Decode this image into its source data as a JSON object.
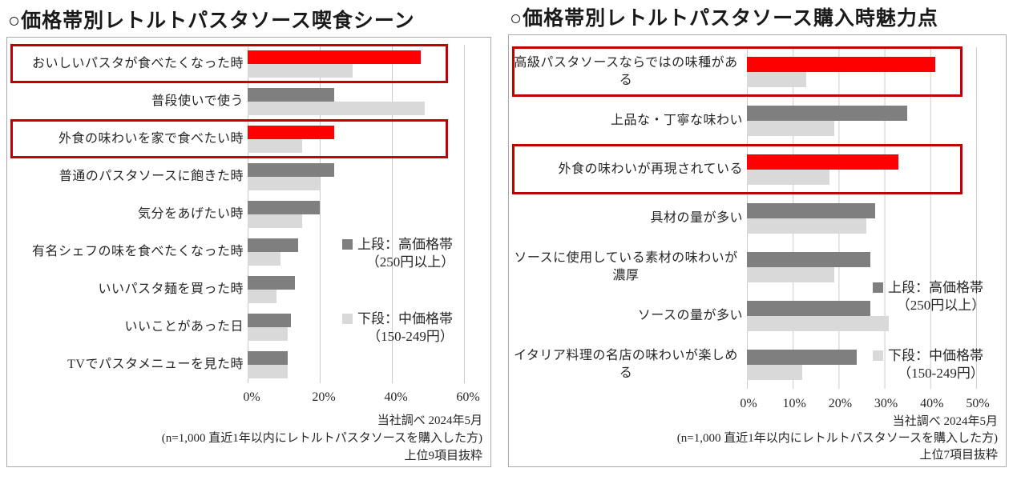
{
  "colors": {
    "high_price_bar": "#7f7f7f",
    "mid_price_bar": "#d9d9d9",
    "highlight_bar": "#ff0000",
    "highlight_frame": "#c00000",
    "gridline": "#cccccc",
    "panel_border": "#a9a9a9",
    "text": "#262626"
  },
  "chart_data": [
    {
      "type": "bar",
      "orientation": "horizontal",
      "title": "○価格帯別レトルトパスタソース喫食シーン",
      "categories": [
        "おいしいパスタが食べたくなった時",
        "普段使いで使う",
        "外食の味わいを家で食べたい時",
        "普通のパスタソースに飽きた時",
        "気分をあげたい時",
        "有名シェフの味を食べたくなった時",
        "いいパスタ麺を買った時",
        "いいことがあった日",
        "TVでパスタメニューを見た時"
      ],
      "series": [
        {
          "name": "上段：高価格帯（250円以上）",
          "values": [
            48,
            24,
            24,
            24,
            20,
            14,
            13,
            12,
            11
          ]
        },
        {
          "name": "下段：中価格帯（150-249円）",
          "values": [
            29,
            49,
            15,
            20,
            15,
            9,
            8,
            11,
            11
          ]
        }
      ],
      "highlighted_rows": [
        0,
        2
      ],
      "x_ticks": [
        "0%",
        "20%",
        "40%",
        "60%"
      ],
      "xlim": [
        0,
        60
      ],
      "grid": true,
      "legend": {
        "position": "right-middle",
        "items": [
          {
            "line1": "上段：高価格帯",
            "line2": "（250円以上）",
            "color": "#7f7f7f"
          },
          {
            "line1": "下段：中価格帯",
            "line2": "（150-249円）",
            "color": "#d9d9d9"
          }
        ]
      },
      "footer_lines": [
        "当社調べ 2024年5月",
        "(n=1,000 直近1年以内にレトルトパスタソースを購入した方)",
        "上位9項目抜粋"
      ]
    },
    {
      "type": "bar",
      "orientation": "horizontal",
      "title": "○価格帯別レトルトパスタソース購入時魅力点",
      "categories": [
        "高級パスタソースならではの味種がある",
        "上品な・丁寧な味わい",
        "外食の味わいが再現されている",
        "具材の量が多い",
        "ソースに使用している素材の味わいが濃厚",
        "ソースの量が多い",
        "イタリア料理の名店の味わいが楽しめる"
      ],
      "series": [
        {
          "name": "上段：高価格帯（250円以上）",
          "values": [
            41,
            35,
            33,
            28,
            27,
            27,
            24
          ]
        },
        {
          "name": "下段：中価格帯（150-249円）",
          "values": [
            13,
            19,
            18,
            26,
            19,
            31,
            12
          ]
        }
      ],
      "highlighted_rows": [
        0,
        2
      ],
      "x_ticks": [
        "0%",
        "10%",
        "20%",
        "30%",
        "40%",
        "50%"
      ],
      "xlim": [
        0,
        50
      ],
      "grid": true,
      "legend": {
        "position": "right-middle",
        "items": [
          {
            "line1": "上段：高価格帯",
            "line2": "（250円以上）",
            "color": "#7f7f7f"
          },
          {
            "line1": "下段：中価格帯",
            "line2": "（150-249円）",
            "color": "#d9d9d9"
          }
        ]
      },
      "footer_lines": [
        "当社調べ 2024年5月",
        "(n=1,000 直近1年以内にレトルトパスタソースを購入した方)",
        "上位7項目抜粋"
      ]
    }
  ]
}
